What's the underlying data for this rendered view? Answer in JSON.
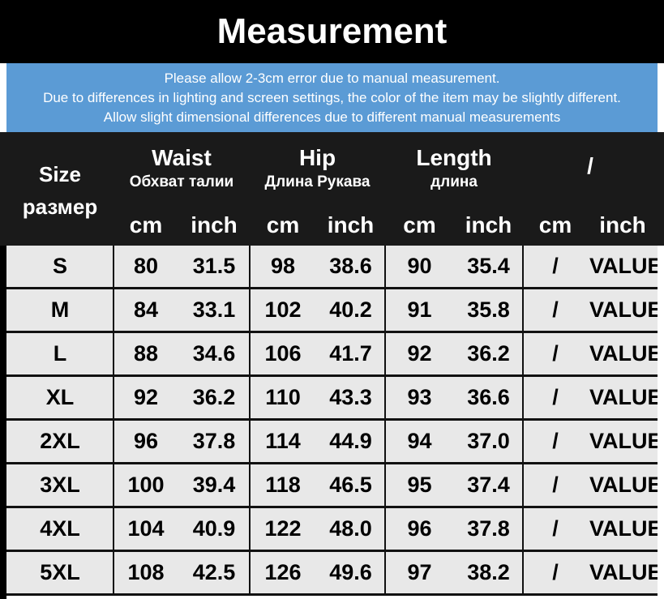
{
  "header": {
    "title": "Measurement",
    "notes": [
      "Please allow 2-3cm error due to manual measurement.",
      "Due to differences in lighting and screen settings, the color of the item may be slightly different.",
      "Allow slight dimensional differences due to different manual measurements"
    ]
  },
  "table": {
    "size_header": [
      "Size",
      "размер"
    ],
    "groups": [
      {
        "name": "Waist",
        "sub": "Обхват талии"
      },
      {
        "name": "Hip",
        "sub": "Длина Рукава"
      },
      {
        "name": "Length",
        "sub": "длина"
      },
      {
        "name": "/",
        "sub": null
      }
    ],
    "units": [
      "cm",
      "inch",
      "cm",
      "inch",
      "cm",
      "inch",
      "cm",
      "inch"
    ],
    "rows": [
      [
        "S",
        "80",
        "31.5",
        "98",
        "38.6",
        "90",
        "35.4",
        "/",
        "VALUE"
      ],
      [
        "M",
        "84",
        "33.1",
        "102",
        "40.2",
        "91",
        "35.8",
        "/",
        "VALUE"
      ],
      [
        "L",
        "88",
        "34.6",
        "106",
        "41.7",
        "92",
        "36.2",
        "/",
        "VALUE"
      ],
      [
        "XL",
        "92",
        "36.2",
        "110",
        "43.3",
        "93",
        "36.6",
        "/",
        "VALUE"
      ],
      [
        "2XL",
        "96",
        "37.8",
        "114",
        "44.9",
        "94",
        "37.0",
        "/",
        "VALUE"
      ],
      [
        "3XL",
        "100",
        "39.4",
        "118",
        "46.5",
        "95",
        "37.4",
        "/",
        "VALUE"
      ],
      [
        "4XL",
        "104",
        "40.9",
        "122",
        "48.0",
        "96",
        "37.8",
        "/",
        "VALUE"
      ],
      [
        "5XL",
        "108",
        "42.5",
        "126",
        "49.6",
        "97",
        "38.2",
        "/",
        "VALUE"
      ]
    ]
  }
}
